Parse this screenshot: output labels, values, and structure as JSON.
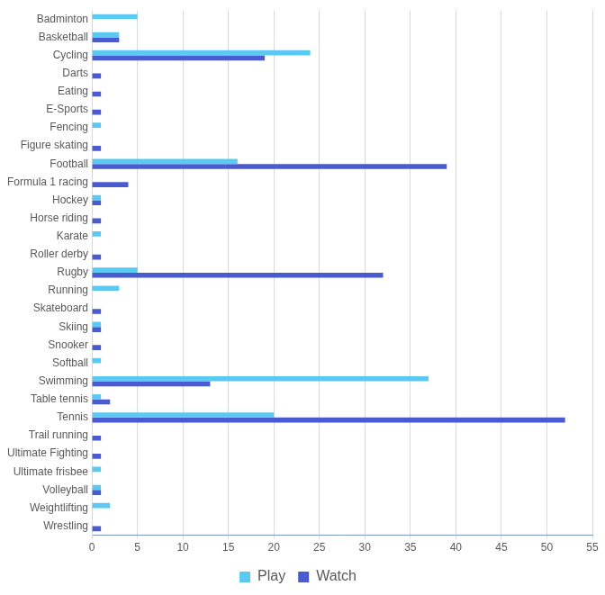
{
  "chart_data": {
    "type": "bar",
    "orientation": "horizontal",
    "categories": [
      "Badminton",
      "Basketball",
      "Cycling",
      "Darts",
      "Eating",
      "E-Sports",
      "Fencing",
      "Figure skating",
      "Football",
      "Formula 1 racing",
      "Hockey",
      "Horse riding",
      "Karate",
      "Roller derby",
      "Rugby",
      "Running",
      "Skateboard",
      "Skiing",
      "Snooker",
      "Softball",
      "Swimming",
      "Table tennis",
      "Tennis",
      "Trail running",
      "Ultimate Fighting",
      "Ultimate frisbee",
      "Volleyball",
      "Weightlifting",
      "Wrestling"
    ],
    "series": [
      {
        "name": "Play",
        "color": "#5bc9f1",
        "values": [
          5,
          3,
          24,
          0,
          0,
          0,
          1,
          0,
          16,
          0,
          1,
          0,
          1,
          0,
          5,
          3,
          0,
          1,
          0,
          1,
          37,
          1,
          20,
          0,
          0,
          1,
          1,
          2,
          0
        ]
      },
      {
        "name": "Watch",
        "color": "#4a5bcf",
        "values": [
          0,
          3,
          19,
          1,
          1,
          1,
          0,
          1,
          39,
          4,
          1,
          1,
          0,
          1,
          32,
          0,
          1,
          1,
          1,
          0,
          13,
          2,
          52,
          1,
          1,
          0,
          1,
          0,
          1
        ]
      }
    ],
    "xlim": [
      0,
      55
    ],
    "xticks": [
      0,
      5,
      10,
      15,
      20,
      25,
      30,
      35,
      40,
      45,
      50,
      55
    ],
    "grid": true,
    "legend": "bottom"
  }
}
